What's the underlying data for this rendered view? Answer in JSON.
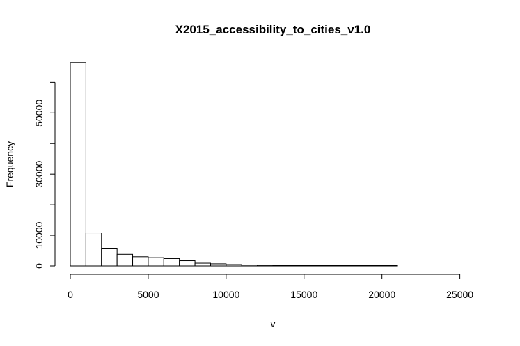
{
  "chart_data": {
    "type": "bar",
    "subtype": "histogram",
    "title": "X2015_accessibility_to_cities_v1.0",
    "xlabel": "v",
    "ylabel": "Frequency",
    "bin_width": 1000,
    "xlim": [
      0,
      26000
    ],
    "ylim": [
      0,
      66000
    ],
    "x_ticks": [
      0,
      5000,
      10000,
      15000,
      20000,
      25000
    ],
    "x_tick_labels": [
      "0",
      "5000",
      "10000",
      "15000",
      "20000",
      "25000"
    ],
    "y_ticks": [
      0,
      10000,
      20000,
      30000,
      40000,
      50000,
      60000
    ],
    "y_tick_labels": [
      "0",
      "10000",
      "30000",
      "50000"
    ],
    "y_labeled_ticks": [
      0,
      10000,
      30000,
      50000
    ],
    "bins": [
      {
        "start": 0,
        "end": 1000,
        "count": 66500
      },
      {
        "start": 1000,
        "end": 2000,
        "count": 10800
      },
      {
        "start": 2000,
        "end": 3000,
        "count": 5800
      },
      {
        "start": 3000,
        "end": 4000,
        "count": 3800
      },
      {
        "start": 4000,
        "end": 5000,
        "count": 3000
      },
      {
        "start": 5000,
        "end": 6000,
        "count": 2700
      },
      {
        "start": 6000,
        "end": 7000,
        "count": 2400
      },
      {
        "start": 7000,
        "end": 8000,
        "count": 1700
      },
      {
        "start": 8000,
        "end": 9000,
        "count": 900
      },
      {
        "start": 9000,
        "end": 10000,
        "count": 700
      },
      {
        "start": 10000,
        "end": 11000,
        "count": 450
      },
      {
        "start": 11000,
        "end": 12000,
        "count": 300
      },
      {
        "start": 12000,
        "end": 13000,
        "count": 250
      },
      {
        "start": 13000,
        "end": 14000,
        "count": 220
      },
      {
        "start": 14000,
        "end": 15000,
        "count": 200
      },
      {
        "start": 15000,
        "end": 16000,
        "count": 180
      },
      {
        "start": 16000,
        "end": 17000,
        "count": 160
      },
      {
        "start": 17000,
        "end": 18000,
        "count": 150
      },
      {
        "start": 18000,
        "end": 19000,
        "count": 140
      },
      {
        "start": 19000,
        "end": 20000,
        "count": 130
      },
      {
        "start": 20000,
        "end": 21000,
        "count": 120
      },
      {
        "start": 21000,
        "end": 22000,
        "count": 0
      },
      {
        "start": 22000,
        "end": 23000,
        "count": 0
      },
      {
        "start": 23000,
        "end": 24000,
        "count": 0
      },
      {
        "start": 24000,
        "end": 25000,
        "count": 0
      },
      {
        "start": 25000,
        "end": 26000,
        "count": 0
      }
    ],
    "grid": false,
    "legend": "none",
    "bar_fill": "#ffffff",
    "bar_stroke": "#000000"
  }
}
